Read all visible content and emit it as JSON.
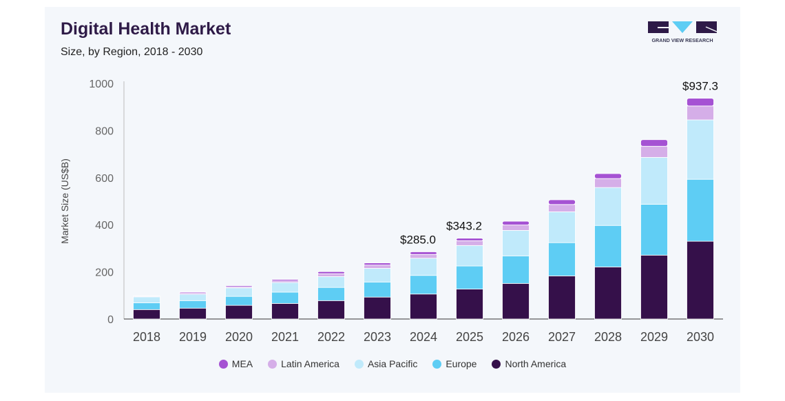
{
  "header": {
    "title": "Digital Health Market",
    "subtitle": "Size, by Region, 2018 - 2030",
    "logo_text": "GRAND VIEW RESEARCH"
  },
  "chart_data": {
    "type": "bar",
    "stacked": true,
    "title": "Digital Health Market",
    "subtitle": "Size, by Region, 2018 - 2030",
    "xlabel": "",
    "ylabel": "Market Size (US$B)",
    "ylim": [
      0,
      1000
    ],
    "yticks": [
      0,
      200,
      400,
      600,
      800,
      1000
    ],
    "grid": false,
    "legend_placement": "bottom",
    "categories": [
      "2018",
      "2019",
      "2020",
      "2021",
      "2022",
      "2023",
      "2024",
      "2025",
      "2026",
      "2027",
      "2028",
      "2029",
      "2030"
    ],
    "series": [
      {
        "name": "North America",
        "color": "#35104a",
        "values": [
          40,
          46,
          58,
          66,
          78,
          93,
          106,
          127,
          151,
          183,
          221,
          271,
          330
        ]
      },
      {
        "name": "Europe",
        "color": "#5ecdf4",
        "values": [
          29,
          32,
          38,
          48,
          56,
          64,
          79,
          98,
          117,
          141,
          176,
          216,
          263
        ]
      },
      {
        "name": "Asia Pacific",
        "color": "#c0eafb",
        "values": [
          25,
          27,
          36,
          41,
          46,
          58,
          73,
          87,
          108,
          131,
          161,
          199,
          252
        ]
      },
      {
        "name": "Latin America",
        "color": "#d5aee8",
        "values": [
          3,
          6,
          4,
          7,
          12,
          14,
          16,
          20,
          23,
          31,
          38,
          47,
          59
        ]
      },
      {
        "name": "MEA",
        "color": "#a552d3",
        "values": [
          1,
          4,
          5,
          6,
          9,
          9,
          11,
          11,
          16,
          20,
          21,
          28,
          33
        ]
      }
    ],
    "legend_order": [
      "MEA",
      "Latin America",
      "Asia Pacific",
      "Europe",
      "North America"
    ],
    "data_labels": [
      {
        "category": "2024",
        "text": "$285.0"
      },
      {
        "category": "2025",
        "text": "$343.2"
      },
      {
        "category": "2030",
        "text": "$937.3"
      }
    ]
  }
}
